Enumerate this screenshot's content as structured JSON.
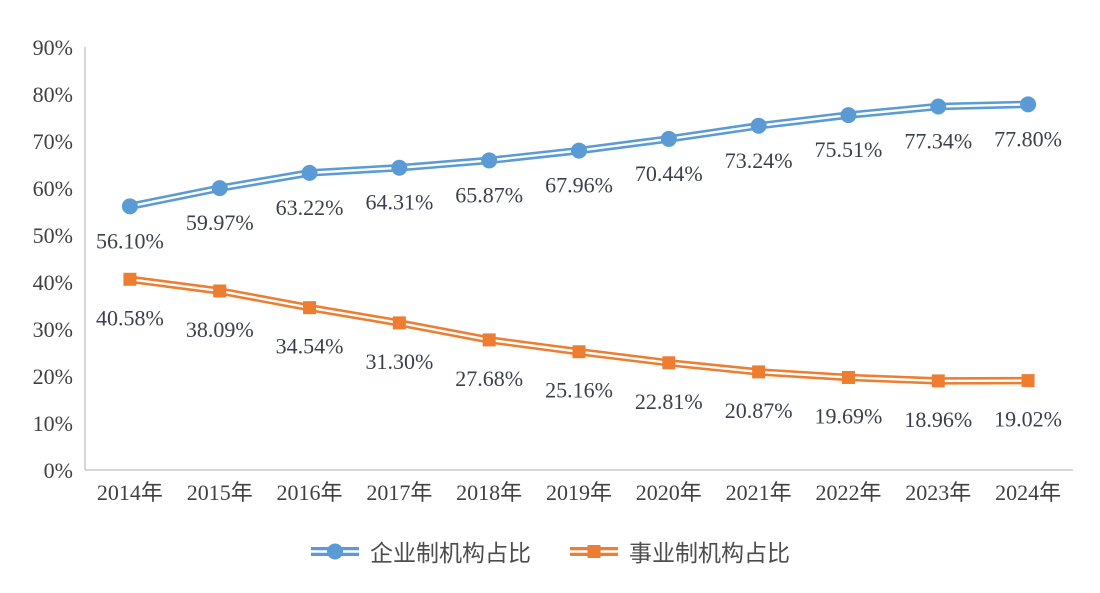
{
  "chart_data": {
    "type": "line",
    "categories": [
      "2014年",
      "2015年",
      "2016年",
      "2017年",
      "2018年",
      "2019年",
      "2020年",
      "2021年",
      "2022年",
      "2023年",
      "2024年"
    ],
    "series": [
      {
        "name": "企业制机构占比",
        "color": "#5B9BD5",
        "marker": "circle",
        "values": [
          56.1,
          59.97,
          63.22,
          64.31,
          65.87,
          67.96,
          70.44,
          73.24,
          75.51,
          77.34,
          77.8
        ],
        "labels": [
          "56.10%",
          "59.97%",
          "63.22%",
          "64.31%",
          "65.87%",
          "67.96%",
          "70.44%",
          "73.24%",
          "75.51%",
          "77.34%",
          "77.80%"
        ]
      },
      {
        "name": "事业制机构占比",
        "color": "#ED7D31",
        "marker": "square",
        "values": [
          40.58,
          38.09,
          34.54,
          31.3,
          27.68,
          25.16,
          22.81,
          20.87,
          19.69,
          18.96,
          19.02
        ],
        "labels": [
          "40.58%",
          "38.09%",
          "34.54%",
          "31.30%",
          "27.68%",
          "25.16%",
          "22.81%",
          "20.87%",
          "19.69%",
          "18.96%",
          "19.02%"
        ]
      }
    ],
    "title": "",
    "xlabel": "",
    "ylabel": "",
    "ylim": [
      0,
      90
    ],
    "ytick_step": 10,
    "ytick_labels": [
      "0%",
      "10%",
      "20%",
      "30%",
      "40%",
      "50%",
      "60%",
      "70%",
      "80%",
      "90%"
    ],
    "grid": false,
    "legend_position": "bottom",
    "line_style": "double-stroke",
    "axis_color": "#C9C9C9",
    "tick_text_color": "#404040",
    "data_label_color": "#3B404C",
    "stripe_color": "#FFFFFF"
  }
}
